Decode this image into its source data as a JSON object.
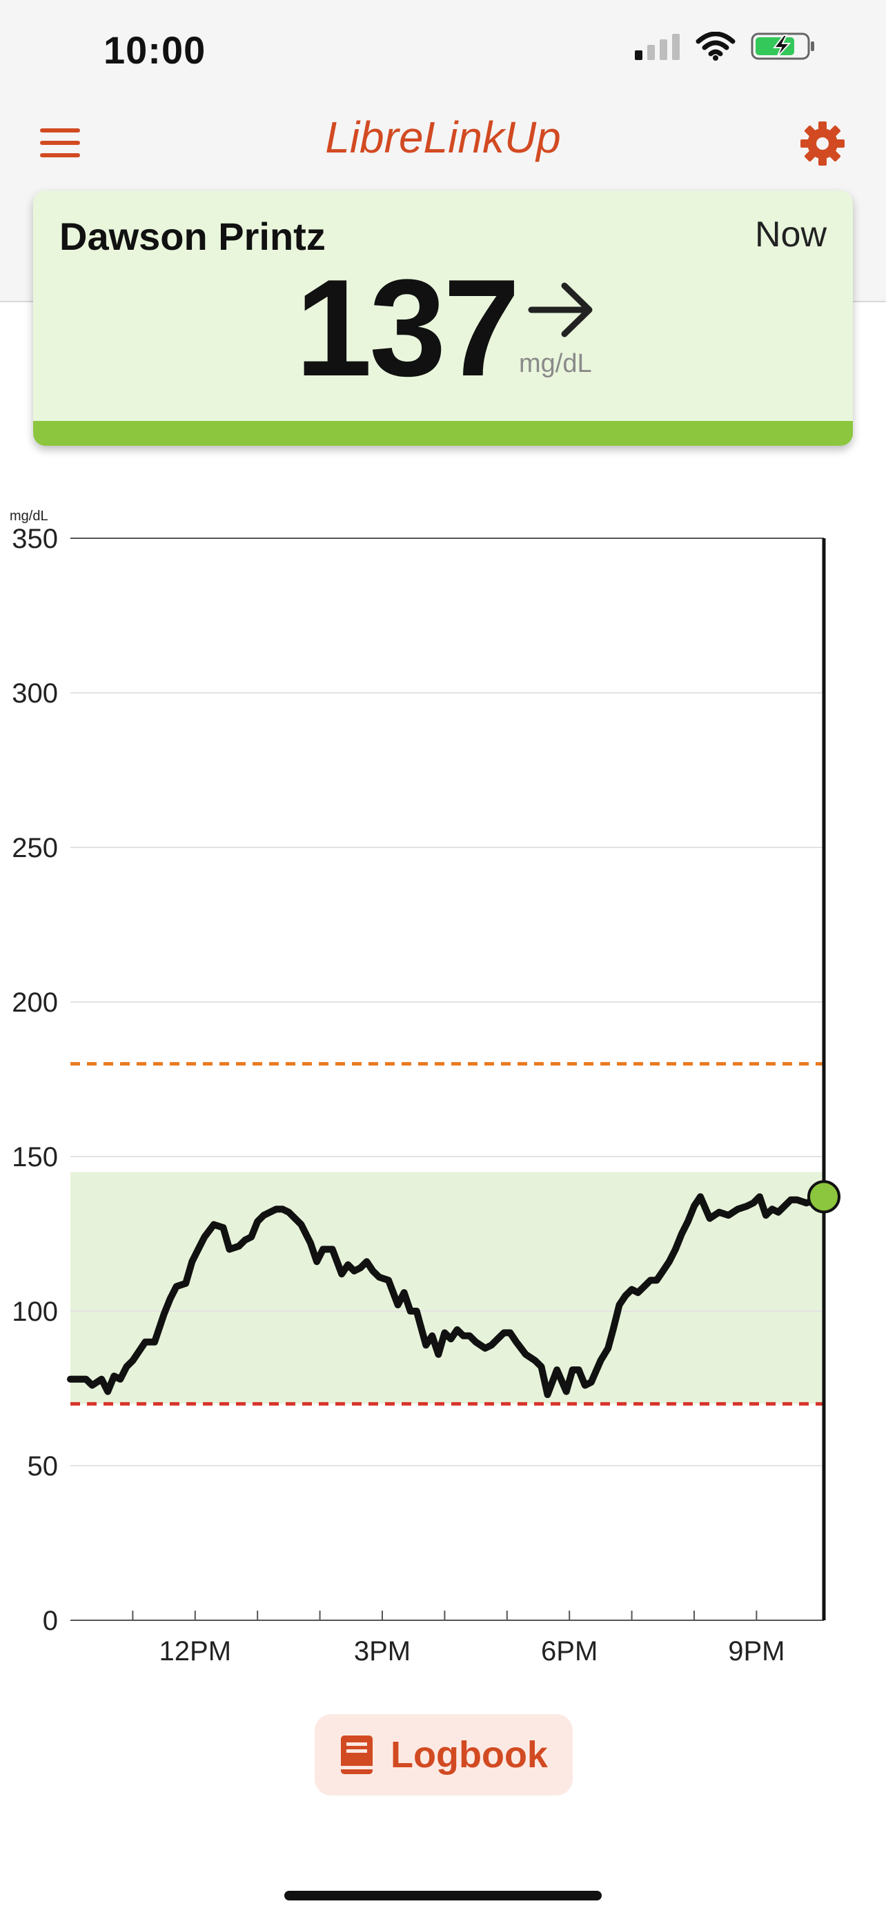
{
  "status_bar": {
    "time": "10:00"
  },
  "header": {
    "title": "LibreLinkUp"
  },
  "card": {
    "patient_name": "Dawson Printz",
    "timestamp": "Now",
    "glucose_value": "137",
    "unit": "mg/dL",
    "trend_icon": "arrow-right-icon",
    "in_range_color": "#8cc63e"
  },
  "chart_data": {
    "type": "line",
    "ylabel": "mg/dL",
    "ylim": [
      0,
      350
    ],
    "yticks": [
      0,
      50,
      100,
      150,
      200,
      250,
      300,
      350
    ],
    "xlim": [
      10,
      22.08
    ],
    "xticks": [
      {
        "label": "12PM",
        "value": 12
      },
      {
        "label": "3PM",
        "value": 15
      },
      {
        "label": "6PM",
        "value": 18
      },
      {
        "label": "9PM",
        "value": 21
      }
    ],
    "minor_xticks": [
      11,
      12,
      13,
      14,
      15,
      16,
      17,
      18,
      19,
      20,
      21
    ],
    "target_range": [
      70,
      145
    ],
    "high_threshold": 180,
    "low_threshold": 70,
    "series": [
      {
        "x": [
          10.0,
          10.25,
          10.35,
          10.5,
          10.6,
          10.7,
          10.8,
          10.9,
          11.0,
          11.2,
          11.35,
          11.5,
          11.6,
          11.7,
          11.85,
          11.95,
          12.05,
          12.15,
          12.3,
          12.45,
          12.55,
          12.7,
          12.8,
          12.9,
          13.0,
          13.1,
          13.2,
          13.3,
          13.4,
          13.5,
          13.7,
          13.85,
          13.95,
          14.05,
          14.2,
          14.35,
          14.45,
          14.55,
          14.65,
          14.75,
          14.85,
          14.95,
          15.1,
          15.25,
          15.35,
          15.45,
          15.55,
          15.7,
          15.8,
          15.9,
          16.0,
          16.1,
          16.2,
          16.3,
          16.4,
          16.5,
          16.65,
          16.75,
          16.85,
          16.95,
          17.05,
          17.15,
          17.3,
          17.45,
          17.55,
          17.65,
          17.8,
          17.95,
          18.05,
          18.15,
          18.25,
          18.35,
          18.5,
          18.62,
          18.7,
          18.8,
          18.9,
          19.0,
          19.1,
          19.2,
          19.3,
          19.4,
          19.5,
          19.6,
          19.7,
          19.8,
          19.9,
          20.0,
          20.1,
          20.25,
          20.4,
          20.55,
          20.7,
          20.85,
          20.95,
          21.05,
          21.15,
          21.25,
          21.35,
          21.45,
          21.55,
          21.65,
          21.8,
          21.95,
          22.08
        ],
        "y": [
          78,
          78,
          76,
          78,
          74,
          79,
          78,
          82,
          84,
          90,
          90,
          99,
          104,
          108,
          109,
          116,
          120,
          124,
          128,
          127,
          120,
          121,
          123,
          124,
          129,
          131,
          132,
          133,
          133,
          132,
          128,
          122,
          116,
          120,
          120,
          112,
          115,
          113,
          114,
          116,
          113,
          111,
          110,
          102,
          106,
          100,
          100,
          89,
          92,
          86,
          93,
          91,
          94,
          92,
          92,
          90,
          88,
          89,
          91,
          93,
          93,
          90,
          86,
          84,
          82,
          73,
          81,
          74,
          81,
          81,
          76,
          77,
          84,
          88,
          94,
          102,
          105,
          107,
          106,
          108,
          110,
          110,
          113,
          116,
          120,
          125,
          129,
          134,
          137,
          130,
          132,
          131,
          133,
          134,
          135,
          137,
          131,
          133,
          132,
          134,
          136,
          136,
          135,
          136,
          137
        ]
      }
    ],
    "line_color": "#111111",
    "range_fill_color": "#e6f3da",
    "high_line_color": "#e97a20",
    "low_line_color": "#d7332b",
    "current_point_color": "#8cc63e"
  },
  "footer": {
    "logbook_label": "Logbook",
    "logbook_icon": "book-icon"
  }
}
